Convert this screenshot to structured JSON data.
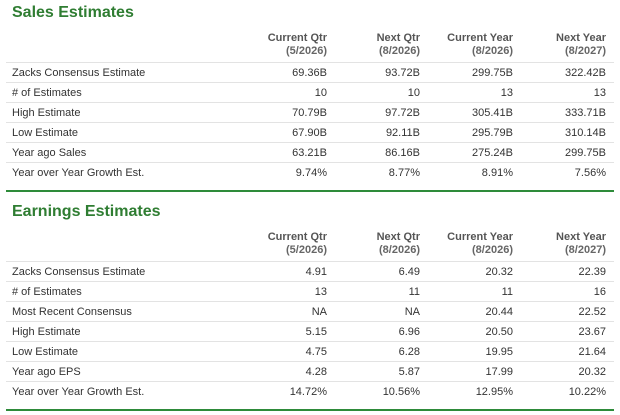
{
  "sales": {
    "title": "Sales Estimates",
    "columns": [
      {
        "label": "Current Qtr",
        "sub": "(5/2026)"
      },
      {
        "label": "Next Qtr",
        "sub": "(8/2026)"
      },
      {
        "label": "Current Year",
        "sub": "(8/2026)"
      },
      {
        "label": "Next Year",
        "sub": "(8/2027)"
      }
    ],
    "rows": [
      {
        "label": "Zacks Consensus Estimate",
        "values": [
          "69.36B",
          "93.72B",
          "299.75B",
          "322.42B"
        ]
      },
      {
        "label": "# of Estimates",
        "values": [
          "10",
          "10",
          "13",
          "13"
        ]
      },
      {
        "label": "High Estimate",
        "values": [
          "70.79B",
          "97.72B",
          "305.41B",
          "333.71B"
        ]
      },
      {
        "label": "Low Estimate",
        "values": [
          "67.90B",
          "92.11B",
          "295.79B",
          "310.14B"
        ]
      },
      {
        "label": "Year ago Sales",
        "values": [
          "63.21B",
          "86.16B",
          "275.24B",
          "299.75B"
        ]
      },
      {
        "label": "Year over Year Growth Est.",
        "values": [
          "9.74%",
          "8.77%",
          "8.91%",
          "7.56%"
        ]
      }
    ]
  },
  "earnings": {
    "title": "Earnings Estimates",
    "columns": [
      {
        "label": "Current Qtr",
        "sub": "(5/2026)"
      },
      {
        "label": "Next Qtr",
        "sub": "(8/2026)"
      },
      {
        "label": "Current Year",
        "sub": "(8/2026)"
      },
      {
        "label": "Next Year",
        "sub": "(8/2027)"
      }
    ],
    "rows": [
      {
        "label": "Zacks Consensus Estimate",
        "values": [
          "4.91",
          "6.49",
          "20.32",
          "22.39"
        ]
      },
      {
        "label": "# of Estimates",
        "values": [
          "13",
          "11",
          "11",
          "16"
        ]
      },
      {
        "label": "Most Recent Consensus",
        "values": [
          "NA",
          "NA",
          "20.44",
          "22.52"
        ]
      },
      {
        "label": "High Estimate",
        "values": [
          "5.15",
          "6.96",
          "20.50",
          "23.67"
        ]
      },
      {
        "label": "Low Estimate",
        "values": [
          "4.75",
          "6.28",
          "19.95",
          "21.64"
        ]
      },
      {
        "label": "Year ago EPS",
        "values": [
          "4.28",
          "5.87",
          "17.99",
          "20.32"
        ]
      },
      {
        "label": "Year over Year Growth Est.",
        "values": [
          "14.72%",
          "10.56%",
          "12.95%",
          "10.22%"
        ]
      }
    ]
  }
}
